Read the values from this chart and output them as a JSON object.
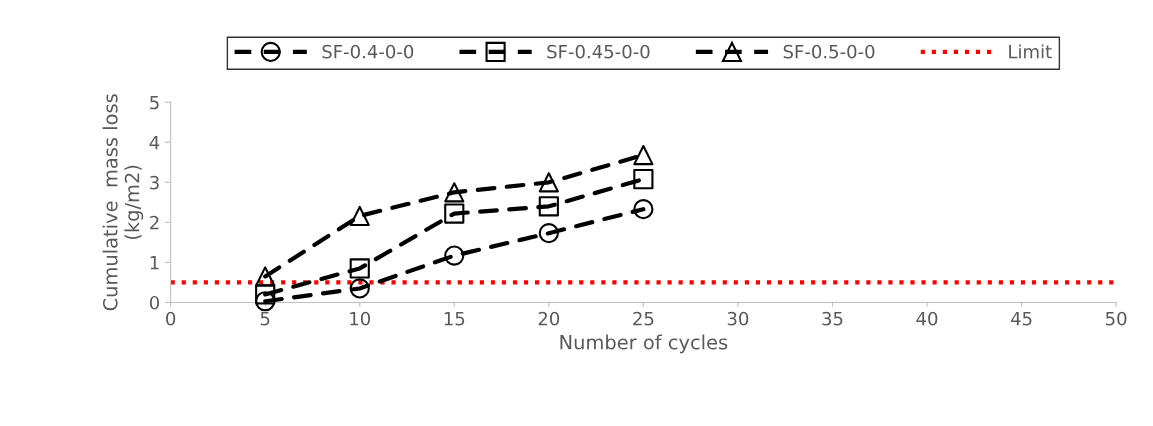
{
  "chart_data": {
    "type": "line",
    "xlabel": "Number of cycles",
    "ylabel": "Cumulative  mass loss\n(kg/m2)",
    "xlim": [
      0,
      50
    ],
    "xticks": [
      0,
      5,
      10,
      15,
      20,
      25,
      30,
      35,
      40,
      45,
      50
    ],
    "ylim": [
      0,
      5
    ],
    "yticks": [
      0,
      1,
      2,
      3,
      4,
      5
    ],
    "grid": false,
    "legend": "top",
    "line_style": "dashed",
    "x": [
      5,
      10,
      15,
      20,
      25
    ],
    "series": [
      {
        "name": "SF-0.4-0-0",
        "color": "#000000",
        "marker": "circle",
        "values": [
          0.03,
          0.35,
          1.17,
          1.73,
          2.33
        ]
      },
      {
        "name": "SF-0.45-0-0",
        "color": "#000000",
        "marker": "square",
        "values": [
          0.2,
          0.85,
          2.22,
          2.4,
          3.08
        ]
      },
      {
        "name": "SF-0.5-0-0",
        "color": "#000000",
        "marker": "triangle",
        "values": [
          0.65,
          2.16,
          2.75,
          3.0,
          3.68
        ]
      }
    ],
    "ref_lines": [
      {
        "axis": "y",
        "value": 0.5,
        "label": "Limit",
        "color": "#ff0000",
        "line_style": "dotted"
      }
    ]
  }
}
